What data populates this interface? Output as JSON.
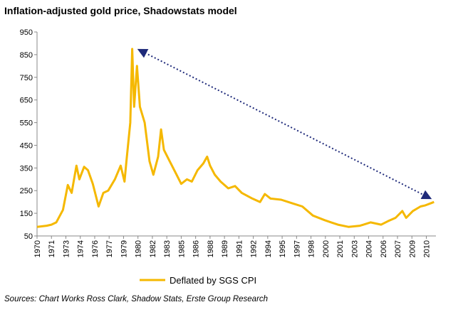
{
  "chart_data": {
    "type": "line",
    "title": "Inflation-adjusted gold price, Shadowstats model",
    "source": "Sources: Chart Works Ross Clark, Shadow Stats, Erste Group Research",
    "x": [
      1970,
      1971,
      1971.5,
      1972,
      1972.7,
      1973.2,
      1973.6,
      1974.1,
      1974.4,
      1974.9,
      1975.3,
      1975.8,
      1976.4,
      1976.9,
      1977.4,
      1978.1,
      1978.7,
      1979.1,
      1979.3,
      1979.7,
      1979.9,
      1980.1,
      1980.4,
      1980.7,
      1981.2,
      1981.7,
      1982.1,
      1982.6,
      1982.9,
      1983.2,
      1983.8,
      1984.4,
      1985,
      1985.6,
      1986.1,
      1986.7,
      1987.3,
      1987.7,
      1988,
      1988.5,
      1989.1,
      1989.9,
      1990.6,
      1991.3,
      1992.4,
      1993.2,
      1993.7,
      1994.3,
      1995.4,
      1996.5,
      1997.6,
      1998.7,
      1999.9,
      2000.6,
      2001.3,
      2002.4,
      2003.6,
      2004.7,
      2005.8,
      2006.5,
      2007.3,
      2008,
      2008.4,
      2009.1,
      2009.9,
      2010.4,
      2011,
      2011.3
    ],
    "series": [
      {
        "name": "Deflated by SGS CPI",
        "color": "#f5b800",
        "values": [
          90,
          95,
          100,
          110,
          165,
          275,
          240,
          360,
          300,
          355,
          340,
          280,
          180,
          240,
          250,
          300,
          360,
          290,
          380,
          550,
          875,
          620,
          800,
          620,
          550,
          380,
          320,
          400,
          520,
          430,
          380,
          330,
          280,
          300,
          290,
          340,
          370,
          400,
          360,
          320,
          290,
          260,
          270,
          240,
          215,
          200,
          235,
          215,
          210,
          195,
          180,
          140,
          120,
          110,
          100,
          90,
          95,
          110,
          100,
          115,
          130,
          160,
          130,
          160,
          180,
          185,
          195,
          200
        ]
      }
    ],
    "xlim": [
      1970,
      2011.5
    ],
    "xticks": [
      1970,
      {
        "value": 1971.5,
        "label": "1971"
      },
      1973,
      {
        "value": 1974.5,
        "label": "1974"
      },
      1976,
      {
        "value": 1977.5,
        "label": "1977"
      },
      1979,
      {
        "value": 1980.5,
        "label": "1980"
      },
      1982,
      {
        "value": 1983.5,
        "label": "1983"
      },
      1985,
      {
        "value": 1986.5,
        "label": "1986"
      },
      1988,
      {
        "value": 1989.5,
        "label": "1989"
      },
      1991,
      {
        "value": 1992.5,
        "label": "1992"
      },
      1994,
      {
        "value": 1995.5,
        "label": "1995"
      },
      1997,
      {
        "value": 1998.5,
        "label": "1998"
      },
      2000,
      {
        "value": 2001.5,
        "label": "2001"
      },
      2003,
      {
        "value": 2004.5,
        "label": "2004"
      },
      2006,
      {
        "value": 2007.5,
        "label": "2007"
      },
      2009,
      {
        "value": 2010.5,
        "label": "2010"
      }
    ],
    "ylim": [
      50,
      950
    ],
    "yticks": [
      50,
      150,
      250,
      350,
      450,
      550,
      650,
      750,
      850,
      950
    ],
    "grid": false
  }
}
